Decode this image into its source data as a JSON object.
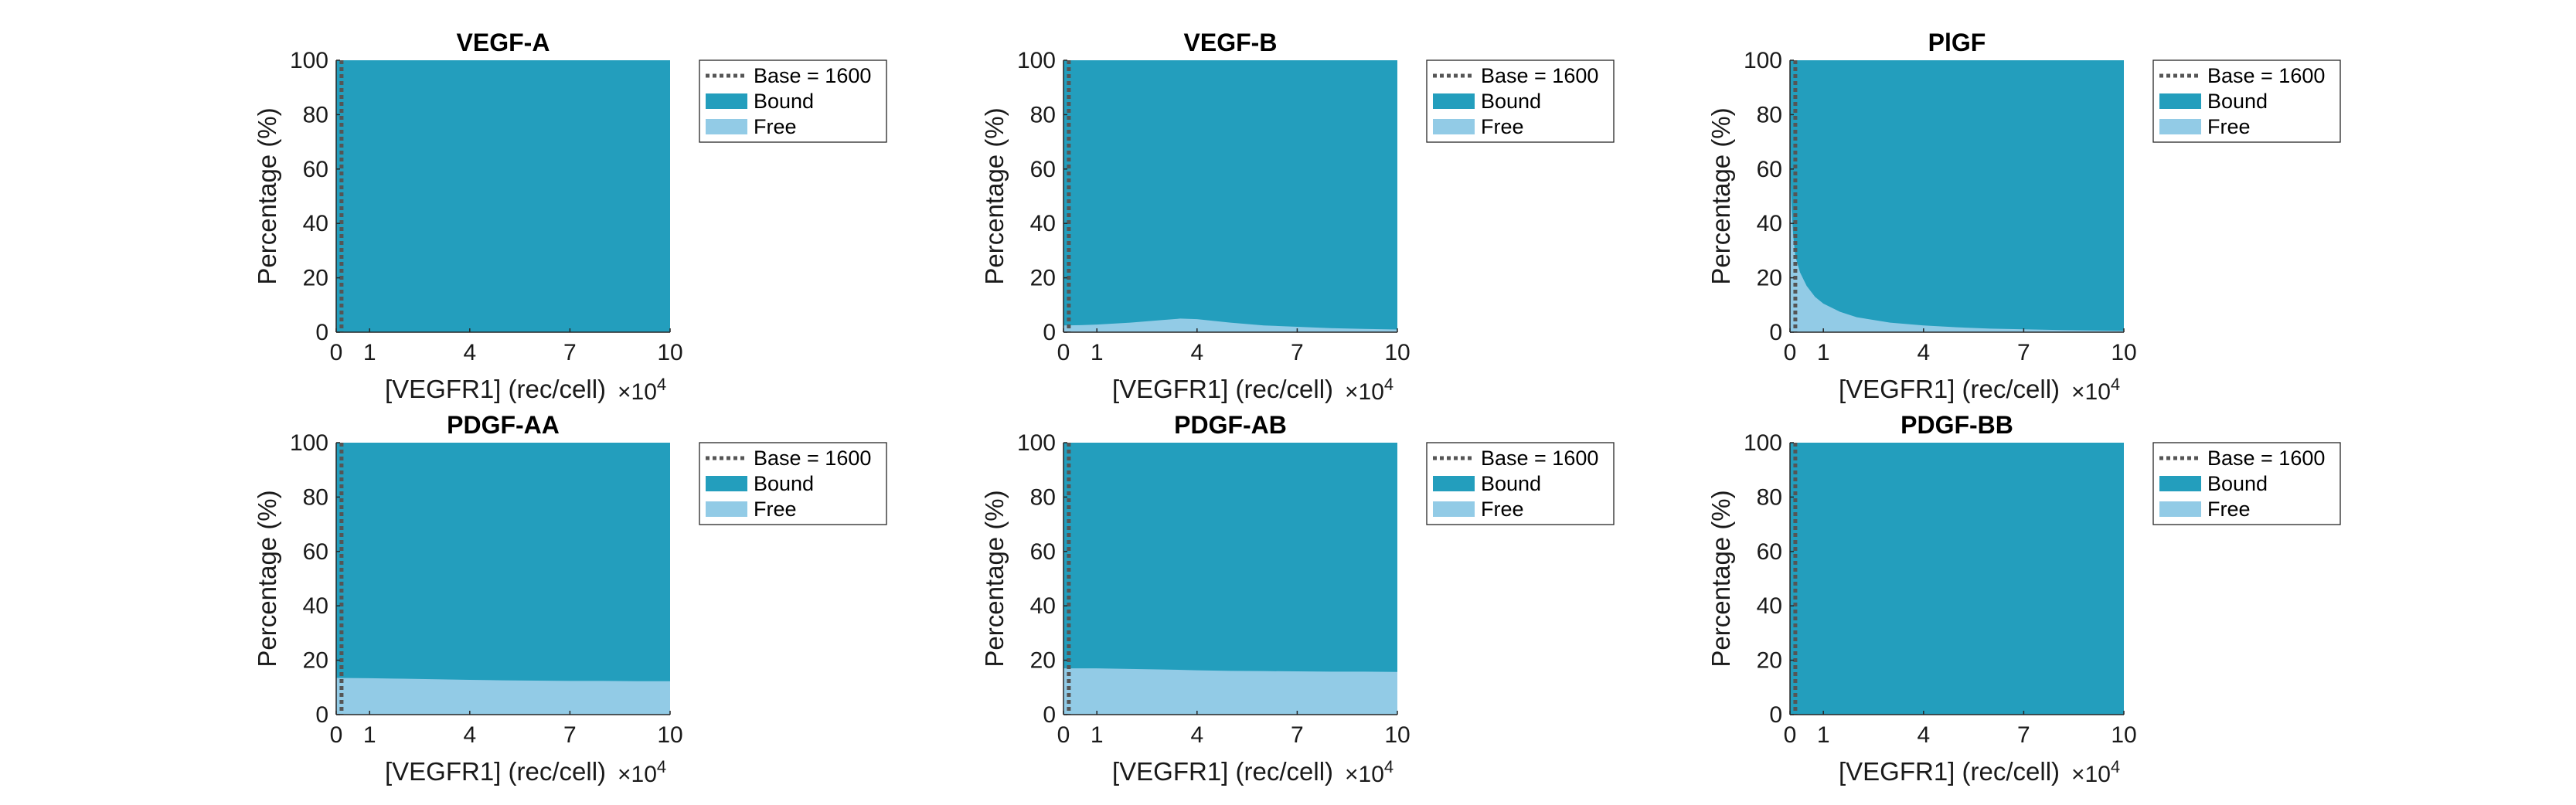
{
  "colors": {
    "bound": "#239EBD",
    "free": "#92CBE6",
    "baseline": "#555555"
  },
  "legend": {
    "base_label": "Base = 1600",
    "bound_label": "Bound",
    "free_label": "Free"
  },
  "chart_data": [
    {
      "type": "area",
      "stacked": true,
      "title": "VEGF-A",
      "xlabel": "[VEGFR1] (rec/cell)",
      "ylabel": "Percentage (%)",
      "x_multiplier": "×10^4",
      "xlim": [
        0,
        10
      ],
      "ylim": [
        0,
        100
      ],
      "xticks": [
        0,
        1,
        4,
        7,
        10
      ],
      "yticks": [
        0,
        20,
        40,
        60,
        80,
        100
      ],
      "base_line_x": 0.16,
      "legend_position": "outside-right",
      "x": [
        0,
        0.5,
        1,
        2,
        3,
        4,
        5,
        6,
        7,
        8,
        9,
        10
      ],
      "free_percent": [
        0,
        0,
        0,
        0,
        0,
        0,
        0,
        0,
        0,
        0,
        0,
        0
      ]
    },
    {
      "type": "area",
      "stacked": true,
      "title": "VEGF-B",
      "xlabel": "[VEGFR1] (rec/cell)",
      "ylabel": "Percentage (%)",
      "x_multiplier": "×10^4",
      "xlim": [
        0,
        10
      ],
      "ylim": [
        0,
        100
      ],
      "xticks": [
        0,
        1,
        4,
        7,
        10
      ],
      "yticks": [
        0,
        20,
        40,
        60,
        80,
        100
      ],
      "base_line_x": 0.16,
      "legend_position": "outside-right",
      "x": [
        0,
        0.5,
        1,
        2,
        3,
        3.5,
        4,
        5,
        6,
        7,
        8,
        9,
        10
      ],
      "free_percent": [
        2.5,
        2.6,
        2.8,
        3.5,
        4.5,
        5,
        4.8,
        3.5,
        2.5,
        2,
        1.5,
        1.2,
        1
      ]
    },
    {
      "type": "area",
      "stacked": true,
      "title": "PlGF",
      "xlabel": "[VEGFR1] (rec/cell)",
      "ylabel": "Percentage (%)",
      "x_multiplier": "×10^4",
      "xlim": [
        0,
        10
      ],
      "ylim": [
        0,
        100
      ],
      "xticks": [
        0,
        1,
        4,
        7,
        10
      ],
      "yticks": [
        0,
        20,
        40,
        60,
        80,
        100
      ],
      "base_line_x": 0.16,
      "legend_position": "outside-right",
      "x": [
        0,
        0.05,
        0.1,
        0.16,
        0.3,
        0.5,
        0.75,
        1,
        1.5,
        2,
        3,
        4,
        5,
        6,
        8,
        10
      ],
      "free_percent": [
        60,
        45,
        35,
        28,
        22,
        17,
        13,
        10.5,
        7.5,
        5.5,
        3.5,
        2.5,
        1.8,
        1.3,
        0.8,
        0.5
      ]
    },
    {
      "type": "area",
      "stacked": true,
      "title": "PDGF-AA",
      "xlabel": "[VEGFR1] (rec/cell)",
      "ylabel": "Percentage (%)",
      "x_multiplier": "×10^4",
      "xlim": [
        0,
        10
      ],
      "ylim": [
        0,
        100
      ],
      "xticks": [
        0,
        1,
        4,
        7,
        10
      ],
      "yticks": [
        0,
        20,
        40,
        60,
        80,
        100
      ],
      "base_line_x": 0.16,
      "legend_position": "outside-right",
      "x": [
        0,
        1,
        2,
        3,
        4,
        5,
        6,
        7,
        8,
        9,
        10
      ],
      "free_percent": [
        13.5,
        13.4,
        13.2,
        13,
        12.8,
        12.6,
        12.5,
        12.4,
        12.4,
        12.3,
        12.3
      ]
    },
    {
      "type": "area",
      "stacked": true,
      "title": "PDGF-AB",
      "xlabel": "[VEGFR1] (rec/cell)",
      "ylabel": "Percentage (%)",
      "x_multiplier": "×10^4",
      "xlim": [
        0,
        10
      ],
      "ylim": [
        0,
        100
      ],
      "xticks": [
        0,
        1,
        4,
        7,
        10
      ],
      "yticks": [
        0,
        20,
        40,
        60,
        80,
        100
      ],
      "base_line_x": 0.16,
      "legend_position": "outside-right",
      "x": [
        0,
        1,
        2,
        3,
        4,
        5,
        6,
        7,
        8,
        9,
        10
      ],
      "free_percent": [
        17,
        17,
        16.8,
        16.6,
        16.3,
        16.1,
        16,
        15.9,
        15.8,
        15.8,
        15.7
      ]
    },
    {
      "type": "area",
      "stacked": true,
      "title": "PDGF-BB",
      "xlabel": "[VEGFR1] (rec/cell)",
      "ylabel": "Percentage (%)",
      "x_multiplier": "×10^4",
      "xlim": [
        0,
        10
      ],
      "ylim": [
        0,
        100
      ],
      "xticks": [
        0,
        1,
        4,
        7,
        10
      ],
      "yticks": [
        0,
        20,
        40,
        60,
        80,
        100
      ],
      "base_line_x": 0.16,
      "legend_position": "outside-right",
      "x": [
        0,
        0.5,
        1,
        2,
        3,
        4,
        5,
        6,
        7,
        8,
        9,
        10
      ],
      "free_percent": [
        0,
        0,
        0,
        0,
        0,
        0,
        0,
        0,
        0,
        0,
        0,
        0
      ]
    }
  ]
}
